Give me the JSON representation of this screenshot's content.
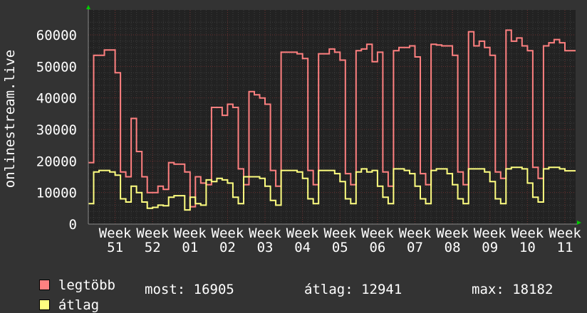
{
  "chart_data": {
    "type": "line",
    "ylabel": "onlinestream.live",
    "ylim": [
      0,
      66000
    ],
    "y_ticks": [
      "0",
      "10000",
      "20000",
      "30000",
      "40000",
      "50000",
      "60000"
    ],
    "x_tick_labels": [
      "Week 51",
      "Week 52",
      "Week 01",
      "Week 02",
      "Week 03",
      "Week 04",
      "Week 05",
      "Week 06",
      "Week 07",
      "Week 08",
      "Week 09",
      "Week 10",
      "Week 11"
    ],
    "grid": true,
    "step": true,
    "colors": {
      "background": "#333333",
      "plot": "#222222",
      "grid": "#444444",
      "major_grid": "#6a3030",
      "legtobb": "#ff8080",
      "atlag": "#ffff80"
    },
    "series": [
      {
        "name": "legtöbb",
        "color": "#ff8080",
        "values": [
          19500,
          53500,
          53500,
          55200,
          55200,
          48000,
          16500,
          15000,
          33500,
          23000,
          15000,
          10000,
          10000,
          12000,
          11000,
          19500,
          19000,
          19000,
          16500,
          5500,
          15000,
          13000,
          12500,
          37000,
          37000,
          34500,
          38000,
          37000,
          17500,
          12500,
          42000,
          41000,
          40000,
          38000,
          17000,
          12000,
          54500,
          54500,
          54500,
          54000,
          52500,
          17000,
          12500,
          54000,
          54000,
          55500,
          54500,
          52000,
          16000,
          12500,
          55000,
          55500,
          57000,
          51500,
          54500,
          16500,
          12000,
          55000,
          56000,
          56000,
          56500,
          53000,
          16000,
          12500,
          57000,
          56800,
          56500,
          56500,
          53500,
          16500,
          12500,
          61000,
          56500,
          58000,
          56000,
          53500,
          16500,
          14500,
          61500,
          58000,
          59000,
          56500,
          55000,
          18000,
          14500,
          56500,
          57500,
          58500,
          57500,
          55000,
          55000
        ]
      },
      {
        "name": "átlag",
        "color": "#ffff80",
        "values": [
          6500,
          16500,
          17000,
          17000,
          16500,
          15500,
          8000,
          7000,
          12000,
          10000,
          7000,
          5000,
          5300,
          6000,
          5800,
          8500,
          9000,
          9000,
          4500,
          8500,
          6500,
          6000,
          14000,
          13500,
          14500,
          14000,
          13000,
          8500,
          6500,
          15000,
          15000,
          15000,
          14500,
          12000,
          7500,
          6000,
          17000,
          17000,
          17000,
          16500,
          14500,
          8000,
          6500,
          17000,
          17000,
          17000,
          16000,
          13500,
          8000,
          6500,
          16500,
          17500,
          16500,
          17000,
          12000,
          8500,
          6500,
          17500,
          17500,
          17000,
          16000,
          12000,
          8000,
          6500,
          17000,
          17500,
          17500,
          16000,
          12500,
          8000,
          6500,
          17500,
          17500,
          17500,
          16500,
          13500,
          8000,
          6500,
          17500,
          18000,
          18000,
          17500,
          13000,
          8500,
          7000,
          17500,
          18000,
          18000,
          17500,
          16900,
          16900
        ]
      }
    ]
  },
  "legend": {
    "items": [
      {
        "label": "legtöbb",
        "color": "#ff8080"
      },
      {
        "label": "átlag",
        "color": "#ffff80"
      }
    ],
    "stats": {
      "most": "most: 16905",
      "atlag": "átlag: 12941",
      "max": "max: 18182"
    }
  }
}
